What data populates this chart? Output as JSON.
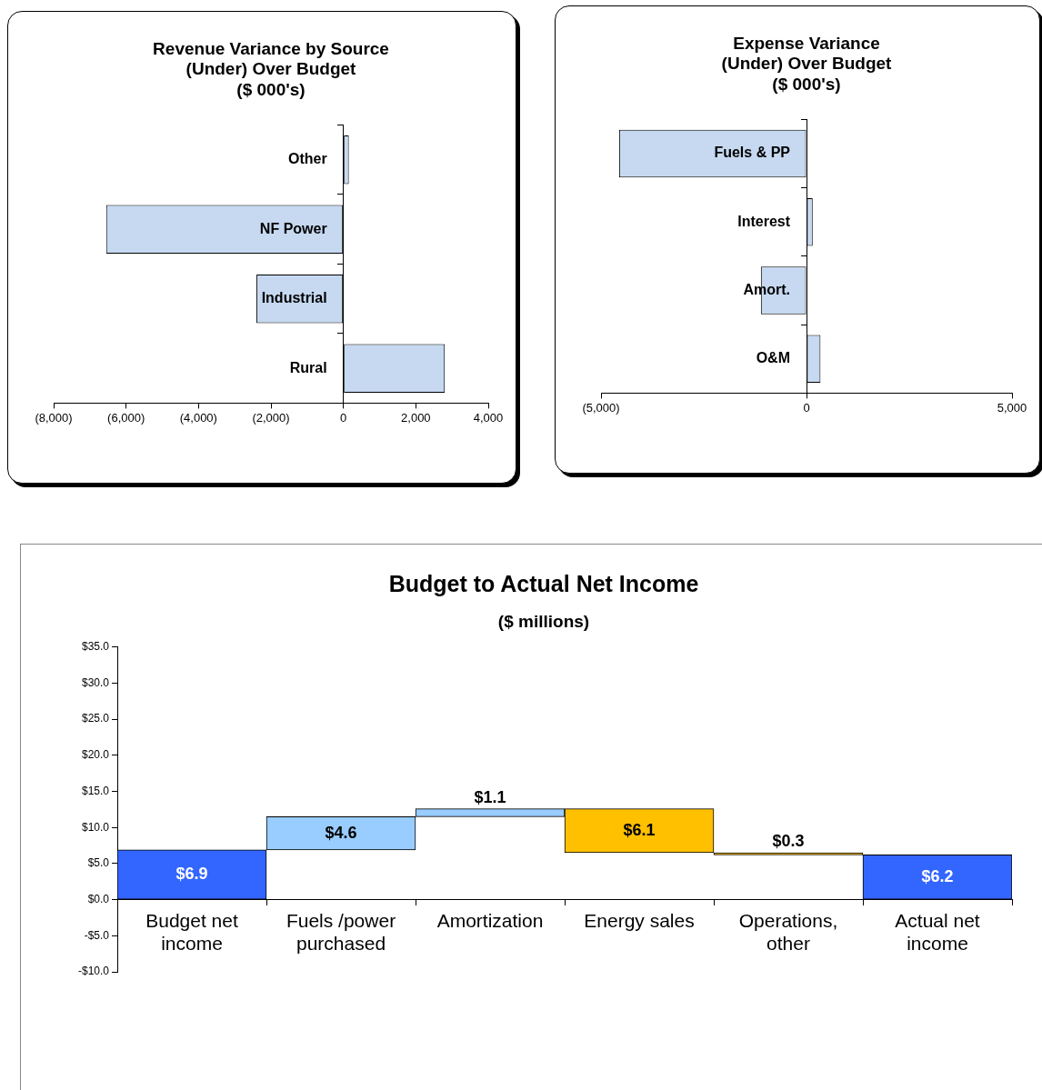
{
  "chart_data": [
    {
      "type": "bar",
      "orientation": "horizontal",
      "title": "Revenue Variance by Source\n(Under) Over Budget\n($ 000's)",
      "categories": [
        "Other",
        "NF Power",
        "Industrial",
        "Rural"
      ],
      "values": [
        150,
        -6550,
        -2400,
        2800
      ],
      "color": "#c6d9f1",
      "xlim": [
        -8000,
        4000
      ],
      "xticks": [
        {
          "value": -8000,
          "label": "(8,000)"
        },
        {
          "value": -6000,
          "label": "(6,000)"
        },
        {
          "value": -4000,
          "label": "(4,000)"
        },
        {
          "value": -2000,
          "label": "(2,000)"
        },
        0,
        {
          "value": 2000,
          "label": "2,000"
        },
        {
          "value": 4000,
          "label": "4,000"
        }
      ],
      "grid": false,
      "legend": false
    },
    {
      "type": "bar",
      "orientation": "horizontal",
      "title": "Expense Variance\n(Under) Over Budget\n($ 000's)",
      "categories": [
        "Fuels & PP",
        "Interest",
        "Amort.",
        "O&M"
      ],
      "values": [
        -4560,
        150,
        -1110,
        340
      ],
      "color": "#c6d9f1",
      "xlim": [
        -5000,
        5000
      ],
      "xticks": [
        {
          "value": -5000,
          "label": "(5,000)"
        },
        0,
        {
          "value": 5000,
          "label": "5,000"
        }
      ],
      "grid": false,
      "legend": false
    },
    {
      "type": "bar",
      "title": "Budget to Actual Net Income",
      "subtitle": "($ millions)",
      "categories": [
        "Budget net income",
        "Fuels /power purchased",
        "Amortization",
        "Energy sales",
        "Operations, other",
        "Actual net income"
      ],
      "values": [
        6.9,
        4.6,
        1.1,
        -6.1,
        -0.3,
        6.2
      ],
      "base": [
        0,
        6.9,
        11.5,
        12.6,
        6.5,
        0
      ],
      "colors": [
        "#3366ff",
        "#99ccff",
        "#99ccff",
        "#ffc000",
        "#ffc000",
        "#3366ff"
      ],
      "value_labels": [
        "$6.9",
        "$4.6",
        "$1.1",
        "$6.1",
        "$0.3",
        "$6.2"
      ],
      "ylim": [
        -10,
        35
      ],
      "yticks": [
        {
          "value": -10,
          "label": "-$10.0"
        },
        {
          "value": -5,
          "label": "-$5.0"
        },
        {
          "value": 0,
          "label": "$0.0"
        },
        {
          "value": 5,
          "label": "$5.0"
        },
        {
          "value": 10,
          "label": "$10.0"
        },
        {
          "value": 15,
          "label": "$15.0"
        },
        {
          "value": 20,
          "label": "$20.0"
        },
        {
          "value": 25,
          "label": "$25.0"
        },
        {
          "value": 30,
          "label": "$30.0"
        },
        {
          "value": 35,
          "label": "$35.0"
        }
      ],
      "grid": false,
      "legend": false
    }
  ]
}
